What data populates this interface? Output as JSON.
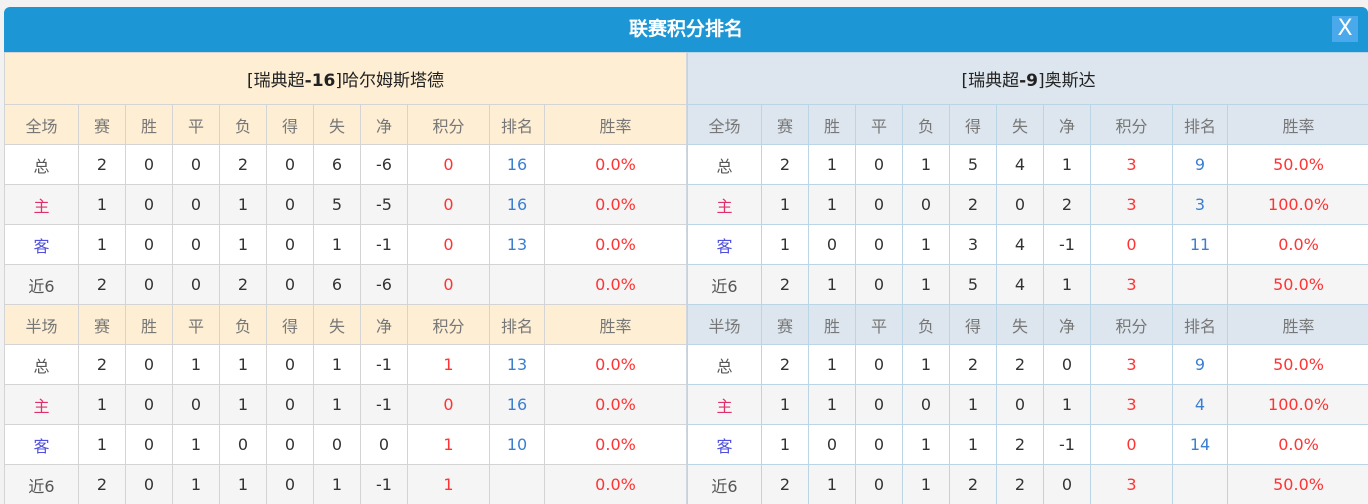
{
  "title": "联赛积分排名",
  "close_label": "X",
  "columns": [
    "赛",
    "胜",
    "平",
    "负",
    "得",
    "失",
    "净",
    "积分",
    "排名",
    "胜率"
  ],
  "teams": [
    {
      "name": "[瑞典超-16]哈尔姆斯塔德",
      "sections": [
        {
          "label": "全场",
          "rows": [
            [
              "总",
              "2",
              "0",
              "0",
              "2",
              "0",
              "6",
              "-6",
              "0",
              "16",
              "0.0%"
            ],
            [
              "主",
              "1",
              "0",
              "0",
              "1",
              "0",
              "5",
              "-5",
              "0",
              "16",
              "0.0%"
            ],
            [
              "客",
              "1",
              "0",
              "0",
              "1",
              "0",
              "1",
              "-1",
              "0",
              "13",
              "0.0%"
            ],
            [
              "近6",
              "2",
              "0",
              "0",
              "2",
              "0",
              "6",
              "-6",
              "0",
              "",
              "0.0%"
            ]
          ]
        },
        {
          "label": "半场",
          "rows": [
            [
              "总",
              "2",
              "0",
              "1",
              "1",
              "0",
              "1",
              "-1",
              "1",
              "13",
              "0.0%"
            ],
            [
              "主",
              "1",
              "0",
              "0",
              "1",
              "0",
              "1",
              "-1",
              "0",
              "16",
              "0.0%"
            ],
            [
              "客",
              "1",
              "0",
              "1",
              "0",
              "0",
              "0",
              "0",
              "1",
              "10",
              "0.0%"
            ],
            [
              "近6",
              "2",
              "0",
              "1",
              "1",
              "0",
              "1",
              "-1",
              "1",
              "",
              "0.0%"
            ]
          ]
        }
      ]
    },
    {
      "name": "[瑞典超-9]奥斯达",
      "sections": [
        {
          "label": "全场",
          "rows": [
            [
              "总",
              "2",
              "1",
              "0",
              "1",
              "5",
              "4",
              "1",
              "3",
              "9",
              "50.0%"
            ],
            [
              "主",
              "1",
              "1",
              "0",
              "0",
              "2",
              "0",
              "2",
              "3",
              "3",
              "100.0%"
            ],
            [
              "客",
              "1",
              "0",
              "0",
              "1",
              "3",
              "4",
              "-1",
              "0",
              "11",
              "0.0%"
            ],
            [
              "近6",
              "2",
              "1",
              "0",
              "1",
              "5",
              "4",
              "1",
              "3",
              "",
              "50.0%"
            ]
          ]
        },
        {
          "label": "半场",
          "rows": [
            [
              "总",
              "2",
              "1",
              "0",
              "1",
              "2",
              "2",
              "0",
              "3",
              "9",
              "50.0%"
            ],
            [
              "主",
              "1",
              "1",
              "0",
              "0",
              "1",
              "0",
              "1",
              "3",
              "4",
              "100.0%"
            ],
            [
              "客",
              "1",
              "0",
              "0",
              "1",
              "1",
              "2",
              "-1",
              "0",
              "14",
              "0.0%"
            ],
            [
              "近6",
              "2",
              "1",
              "0",
              "1",
              "2",
              "2",
              "0",
              "3",
              "",
              "50.0%"
            ]
          ]
        }
      ]
    }
  ],
  "colors": {
    "header": "#1c96d5",
    "points": "#ff3333",
    "rank": "#3a7fd0"
  }
}
